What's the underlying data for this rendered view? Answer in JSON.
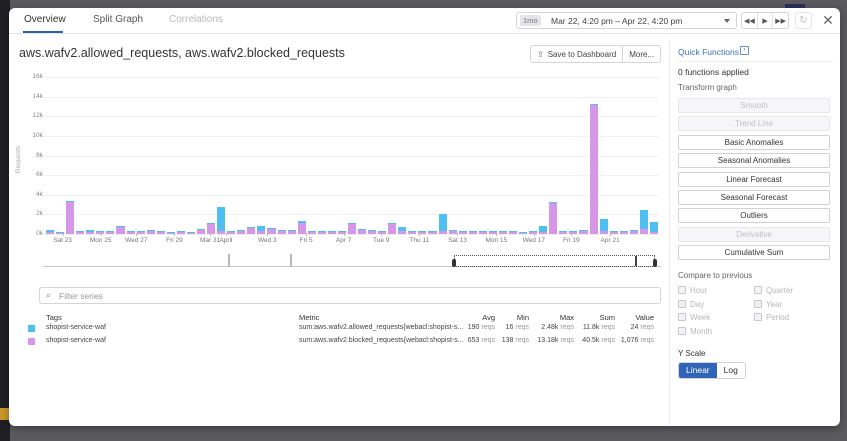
{
  "header": {
    "tabs": [
      {
        "label": "Overview",
        "state": "active"
      },
      {
        "label": "Split Graph",
        "state": "normal"
      },
      {
        "label": "Correlations",
        "state": "disabled"
      }
    ],
    "time_range": {
      "shortcut": "1mo",
      "label": "Mar 22, 4:20 pm – Apr 22, 4:20 pm"
    },
    "playback": {
      "back": "◀◀",
      "play": "▶",
      "forward": "▶▶"
    },
    "reset_icon": "↻",
    "close_icon": "✕"
  },
  "title": "aws.wafv2.allowed_requests, aws.wafv2.blocked_requests",
  "actions": {
    "save_icon": "⇪",
    "save_label": "Save to Dashboard",
    "more_label": "More..."
  },
  "colors": {
    "allowed": "#4ebff1",
    "blocked": "#d597e6",
    "accent": "#2f64b9"
  },
  "chart_data": {
    "type": "bar",
    "stacked": true,
    "title": "aws.wafv2.allowed_requests, aws.wafv2.blocked_requests",
    "xlabel": "",
    "ylabel": "Requests",
    "ylim": [
      0,
      16000
    ],
    "yticks": [
      "0k",
      "2k",
      "4k",
      "6k",
      "8k",
      "10k",
      "12k",
      "14k",
      "16k"
    ],
    "xticks": [
      "Sat 23",
      "Mon 25",
      "Wed 27",
      "Fri 29",
      "Mar 31",
      "April",
      "Wed 3",
      "Fri 5",
      "Apr 7",
      "Tue 9",
      "Thu 11",
      "Sat 13",
      "Mon 15",
      "Wed 17",
      "Fri 19",
      "Apr 21"
    ],
    "grid": true,
    "legend_position": "table-below",
    "bucket": "12h",
    "series": [
      {
        "name": "sum:aws.wafv2.allowed_requests",
        "color": "#4ebff1",
        "values": [
          200,
          30,
          50,
          30,
          200,
          40,
          150,
          40,
          40,
          100,
          60,
          100,
          50,
          60,
          50,
          100,
          30,
          2500,
          100,
          80,
          60,
          500,
          100,
          50,
          60,
          250,
          40,
          40,
          30,
          60,
          30,
          50,
          40,
          30,
          50,
          400,
          40,
          30,
          30,
          1700,
          60,
          50,
          30,
          40,
          30,
          50,
          50,
          40,
          50,
          600,
          40,
          50,
          100,
          50,
          30,
          1200,
          50,
          50,
          30,
          1900,
          1000
        ]
      },
      {
        "name": "sum:aws.wafv2.blocked_requests",
        "color": "#d597e6",
        "values": [
          250,
          150,
          3300,
          250,
          200,
          250,
          200,
          800,
          250,
          250,
          300,
          250,
          200,
          250,
          200,
          400,
          1100,
          300,
          250,
          300,
          700,
          300,
          500,
          350,
          350,
          1100,
          300,
          300,
          300,
          250,
          1100,
          450,
          350,
          300,
          1100,
          300,
          300,
          250,
          250,
          350,
          300,
          300,
          250,
          250,
          300,
          300,
          250,
          200,
          250,
          250,
          3200,
          300,
          250,
          350,
          13200,
          300,
          250,
          300,
          350,
          500,
          250
        ]
      }
    ]
  },
  "navigator": {
    "spikes": [
      0.3,
      0.4
    ],
    "window_start": 0.665,
    "window_end": 0.99
  },
  "filter": {
    "placeholder": "Filter series",
    "value": "",
    "icon": "search-icon"
  },
  "table": {
    "headers": {
      "tags": "Tags",
      "metric": "Metric",
      "avg": "Avg",
      "min": "Min",
      "max": "Max",
      "sum": "Sum",
      "value": "Value"
    },
    "rows": [
      {
        "color": "#4ebff1",
        "tags": "shopist-service-waf",
        "metric": "sum:aws.wafv2.allowed_requests{webacl:shopist-s...",
        "avg": "190",
        "min": "16",
        "max": "2.48k",
        "sum": "11.8k",
        "value": "24",
        "unit": "reqs"
      },
      {
        "color": "#d597e6",
        "tags": "shopist-service-waf",
        "metric": "sum:aws.wafv2.blocked_requests{webacl:shopist-s...",
        "avg": "653",
        "min": "138",
        "max": "13.18k",
        "sum": "40.5k",
        "value": "1,076",
        "unit": "reqs"
      }
    ]
  },
  "side": {
    "quick_functions": "Quick Functions",
    "applied": "0 functions applied",
    "transform_label": "Transform graph",
    "functions": [
      {
        "label": "Smooth",
        "disabled": true
      },
      {
        "label": "Trend Line",
        "disabled": true
      },
      {
        "label": "Basic Anomalies",
        "disabled": false
      },
      {
        "label": "Seasonal Anomalies",
        "disabled": false
      },
      {
        "label": "Linear Forecast",
        "disabled": false
      },
      {
        "label": "Seasonal Forecast",
        "disabled": false
      },
      {
        "label": "Outliers",
        "disabled": false
      },
      {
        "label": "Derivative",
        "disabled": true
      },
      {
        "label": "Cumulative Sum",
        "disabled": false
      }
    ],
    "compare_label": "Compare to previous",
    "compare": [
      {
        "label": "Hour",
        "col": 0,
        "row": 0
      },
      {
        "label": "Day",
        "col": 0,
        "row": 1
      },
      {
        "label": "Week",
        "col": 0,
        "row": 2
      },
      {
        "label": "Month",
        "col": 0,
        "row": 3
      },
      {
        "label": "Quarter",
        "col": 1,
        "row": 0
      },
      {
        "label": "Year",
        "col": 1,
        "row": 1
      },
      {
        "label": "Period",
        "col": 1,
        "row": 2
      }
    ],
    "yscale_label": "Y Scale",
    "yscale": {
      "linear": "Linear",
      "log": "Log",
      "selected": "Linear"
    }
  }
}
